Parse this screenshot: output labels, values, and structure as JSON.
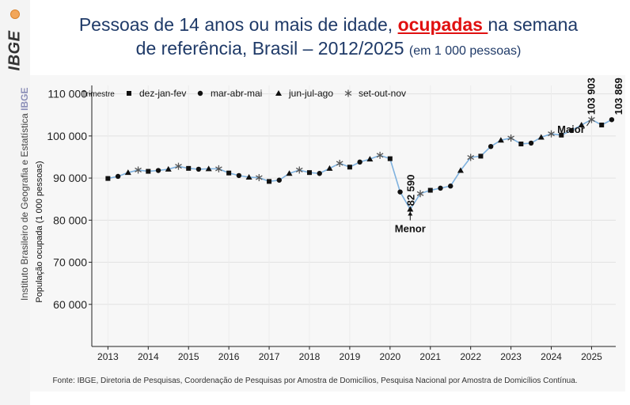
{
  "title": {
    "part1": "Pessoas de 14 anos ou mais de idade, ",
    "highlight": "ocupadas ",
    "part2": "na semana",
    "line2": "de referência,  Brasil – 2012/2025 ",
    "unit": "(em 1 000 pessoas)"
  },
  "sidebar": {
    "logo": "IBGE",
    "institute": "Instituto Brasileiro de Geografia e Estatística ",
    "institute_abbr": "IBGE"
  },
  "source": "Fonte: IBGE, Diretoria de Pesquisas, Coordenação de Pesquisas por Amostra de Domicílios, Pesquisa Nacional por Amostra de Domicílios Contínua.",
  "colors": {
    "line": "#7fb2df",
    "marker": "#111111",
    "title": "#1f3a68",
    "highlight": "#e01010"
  },
  "chart_data": {
    "type": "line",
    "ylabel": "População ocupada (1 000 pessoas)",
    "ylim": [
      50000,
      112000
    ],
    "xlim": [
      2012.6,
      2025.6
    ],
    "yticks": [
      60000,
      70000,
      80000,
      90000,
      100000,
      110000
    ],
    "ytick_labels": [
      "60 000",
      "70 000",
      "80 000",
      "90 000",
      "100 000",
      "110 000"
    ],
    "xticks": [
      2013,
      2014,
      2015,
      2016,
      2017,
      2018,
      2019,
      2020,
      2021,
      2022,
      2023,
      2024,
      2025
    ],
    "xtick_labels": [
      "2013",
      "2014",
      "2015",
      "2016",
      "2017",
      "2018",
      "2019",
      "2020",
      "2021",
      "2022",
      "2023",
      "2024",
      "2025"
    ],
    "legend": {
      "title": "Trimestre",
      "position": "top-left",
      "entries": [
        {
          "label": "dez-jan-fev",
          "marker": "square"
        },
        {
          "label": "mar-abr-mai",
          "marker": "circle"
        },
        {
          "label": "jun-jul-ago",
          "marker": "triangle"
        },
        {
          "label": "set-out-nov",
          "marker": "asterisk"
        }
      ]
    },
    "grid": true,
    "points": [
      {
        "x": 2013.0,
        "y": 89900,
        "m": "square"
      },
      {
        "x": 2013.25,
        "y": 90400,
        "m": "circle"
      },
      {
        "x": 2013.5,
        "y": 91300,
        "m": "triangle"
      },
      {
        "x": 2013.75,
        "y": 91900,
        "m": "asterisk"
      },
      {
        "x": 2014.0,
        "y": 91600,
        "m": "square"
      },
      {
        "x": 2014.25,
        "y": 91800,
        "m": "circle"
      },
      {
        "x": 2014.5,
        "y": 92100,
        "m": "triangle"
      },
      {
        "x": 2014.75,
        "y": 92800,
        "m": "asterisk"
      },
      {
        "x": 2015.0,
        "y": 92300,
        "m": "square"
      },
      {
        "x": 2015.25,
        "y": 92100,
        "m": "circle"
      },
      {
        "x": 2015.5,
        "y": 92200,
        "m": "triangle"
      },
      {
        "x": 2015.75,
        "y": 92200,
        "m": "asterisk"
      },
      {
        "x": 2016.0,
        "y": 91200,
        "m": "square"
      },
      {
        "x": 2016.25,
        "y": 90600,
        "m": "circle"
      },
      {
        "x": 2016.5,
        "y": 90200,
        "m": "triangle"
      },
      {
        "x": 2016.75,
        "y": 90100,
        "m": "asterisk"
      },
      {
        "x": 2017.0,
        "y": 89200,
        "m": "square"
      },
      {
        "x": 2017.25,
        "y": 89500,
        "m": "circle"
      },
      {
        "x": 2017.5,
        "y": 91100,
        "m": "triangle"
      },
      {
        "x": 2017.75,
        "y": 91900,
        "m": "asterisk"
      },
      {
        "x": 2018.0,
        "y": 91300,
        "m": "square"
      },
      {
        "x": 2018.25,
        "y": 91100,
        "m": "circle"
      },
      {
        "x": 2018.5,
        "y": 92300,
        "m": "triangle"
      },
      {
        "x": 2018.75,
        "y": 93500,
        "m": "asterisk"
      },
      {
        "x": 2019.0,
        "y": 92600,
        "m": "square"
      },
      {
        "x": 2019.25,
        "y": 93800,
        "m": "circle"
      },
      {
        "x": 2019.5,
        "y": 94500,
        "m": "triangle"
      },
      {
        "x": 2019.75,
        "y": 95400,
        "m": "asterisk"
      },
      {
        "x": 2020.0,
        "y": 94600,
        "m": "square"
      },
      {
        "x": 2020.25,
        "y": 86700,
        "m": "circle"
      },
      {
        "x": 2020.5,
        "y": 82590,
        "m": "triangle"
      },
      {
        "x": 2020.75,
        "y": 86300,
        "m": "asterisk"
      },
      {
        "x": 2021.0,
        "y": 87100,
        "m": "square"
      },
      {
        "x": 2021.25,
        "y": 87600,
        "m": "circle"
      },
      {
        "x": 2021.5,
        "y": 88100,
        "m": "circle"
      },
      {
        "x": 2021.75,
        "y": 91800,
        "m": "triangle"
      },
      {
        "x": 2022.0,
        "y": 94900,
        "m": "asterisk"
      },
      {
        "x": 2022.25,
        "y": 95200,
        "m": "square"
      },
      {
        "x": 2022.5,
        "y": 97500,
        "m": "circle"
      },
      {
        "x": 2022.75,
        "y": 99000,
        "m": "triangle"
      },
      {
        "x": 2023.0,
        "y": 99500,
        "m": "asterisk"
      },
      {
        "x": 2023.25,
        "y": 98100,
        "m": "square"
      },
      {
        "x": 2023.5,
        "y": 98300,
        "m": "circle"
      },
      {
        "x": 2023.75,
        "y": 99700,
        "m": "triangle"
      },
      {
        "x": 2024.0,
        "y": 100500,
        "m": "asterisk"
      },
      {
        "x": 2024.25,
        "y": 100200,
        "m": "square"
      },
      {
        "x": 2024.5,
        "y": 101300,
        "m": "circle"
      },
      {
        "x": 2024.75,
        "y": 102600,
        "m": "triangle"
      },
      {
        "x": 2025.0,
        "y": 103903,
        "m": "asterisk"
      },
      {
        "x": 2025.25,
        "y": 102600,
        "m": "square"
      },
      {
        "x": 2025.5,
        "y": 103869,
        "m": "circle"
      }
    ],
    "annotations": [
      {
        "label": "82 590",
        "x": 2020.5,
        "y": 82590,
        "note": "Menor"
      },
      {
        "label": "103 903",
        "x": 2025.0,
        "y": 103903,
        "note": "Maior"
      },
      {
        "label": "103 869",
        "x": 2025.5,
        "y": 103869
      }
    ]
  }
}
